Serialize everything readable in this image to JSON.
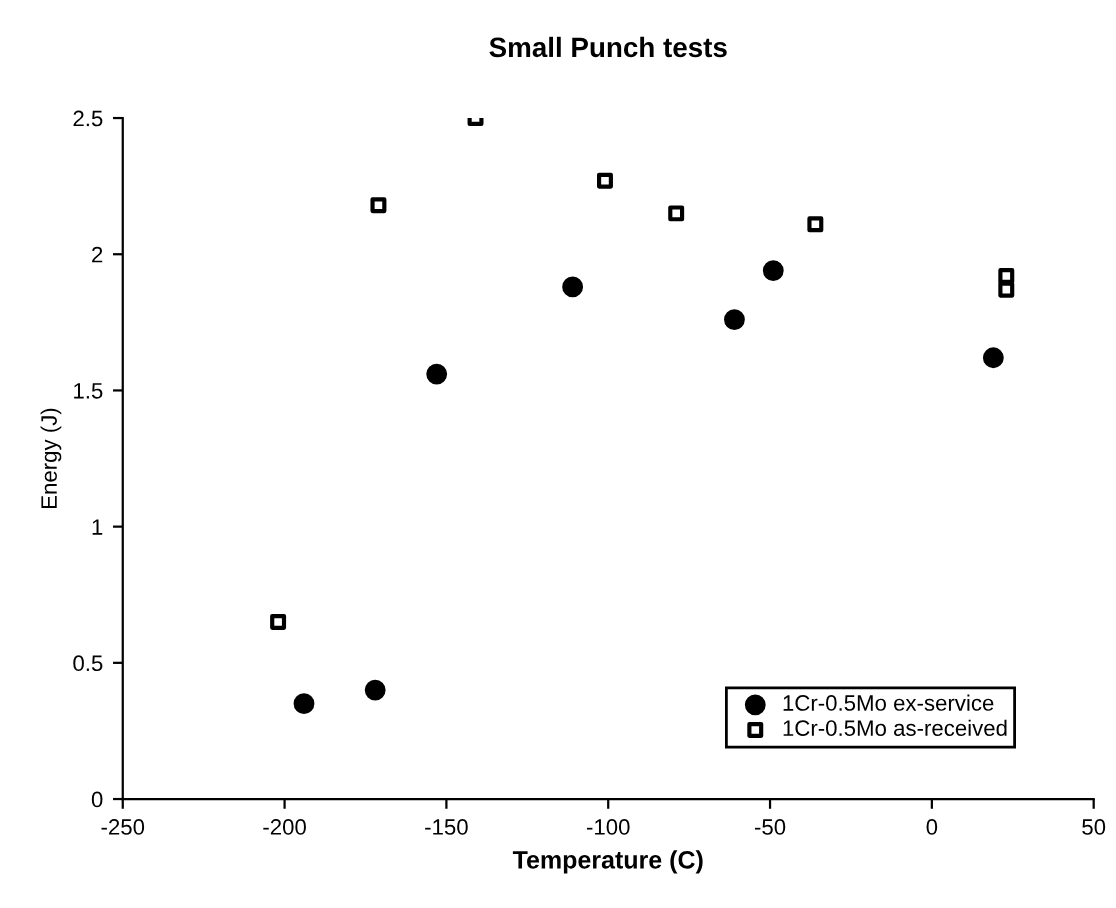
{
  "chart_data": {
    "type": "scatter",
    "title": "Small Punch tests",
    "xlabel": "Temperature (C)",
    "ylabel": "Energy (J)",
    "xlim": [
      -250,
      50
    ],
    "xticks": [
      -250,
      -200,
      -150,
      -100,
      -50,
      0,
      50
    ],
    "ylim": [
      0,
      2.5
    ],
    "yticks": [
      0,
      0.5,
      1,
      1.5,
      2,
      2.5
    ],
    "grid": false,
    "legend": "bottom right",
    "series": [
      {
        "name": "1Cr-0.5Mo ex-service",
        "color": "#000000",
        "marker": "circle",
        "x": [
          -194,
          -172,
          -153,
          -111,
          -61,
          -49,
          19
        ],
        "values": [
          0.35,
          0.4,
          1.56,
          1.88,
          1.76,
          1.94,
          1.62
        ]
      },
      {
        "name": "1Cr-0.5Mo as-received",
        "color": "#000000",
        "marker": "square",
        "x": [
          -202,
          -171,
          -141,
          -101,
          -79,
          -36,
          23,
          23
        ],
        "values": [
          0.65,
          2.18,
          2.5,
          2.27,
          2.15,
          2.11,
          1.92,
          1.87
        ]
      }
    ]
  }
}
